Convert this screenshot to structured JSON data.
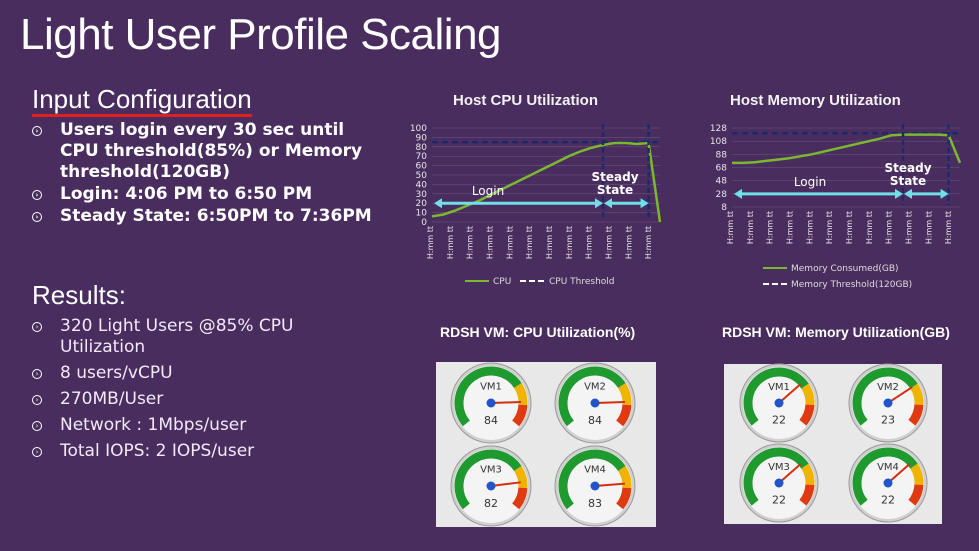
{
  "title": "Light User Profile Scaling",
  "input": {
    "heading": "Input Configuration",
    "items": [
      "Users login every 30 sec until CPU threshold(85%) or Memory threshold(120GB)",
      "Login: 4:06 PM to 6:50 PM",
      "Steady State: 6:50PM to 7:36PM"
    ]
  },
  "results": {
    "heading": "Results:",
    "items": [
      "320 Light Users @85% CPU Utilization",
      "8 users/vCPU",
      "270MB/User",
      "Network : 1Mbps/user",
      "Total IOPS: 2 IOPS/user"
    ]
  },
  "colors": {
    "background": "#4a2d5f",
    "series": "#7cb82f",
    "threshold": "#1c2a6b",
    "arrow": "#6fe0e8",
    "underline": "#e02020"
  },
  "chart_data": [
    {
      "type": "line",
      "title": "Host CPU Utilization",
      "yticks": [
        "100",
        "90",
        "80",
        "70",
        "60",
        "50",
        "40",
        "30",
        "20",
        "10",
        "0"
      ],
      "ylim": [
        0,
        100
      ],
      "xtick_label": "H:mm tt",
      "xtick_count": 12,
      "x": [
        0,
        1,
        2,
        3,
        4,
        5,
        6,
        7,
        8,
        9,
        10,
        11,
        12,
        13,
        14,
        15,
        16,
        17,
        18,
        19,
        20
      ],
      "series": [
        {
          "name": "CPU",
          "values": [
            6,
            8,
            12,
            17,
            22,
            28,
            34,
            40,
            46,
            52,
            58,
            64,
            70,
            75,
            79,
            82,
            84,
            84,
            83,
            84,
            0
          ]
        },
        {
          "name": "CPU Threshold",
          "values": [
            85,
            85,
            85,
            85,
            85,
            85,
            85,
            85,
            85,
            85,
            85,
            85,
            85,
            85,
            85,
            85,
            85,
            85,
            85,
            85,
            85
          ]
        }
      ],
      "annotations": {
        "login": "Login",
        "steady": "Steady State"
      }
    },
    {
      "type": "line",
      "title": "Host Memory Utilization",
      "yticks": [
        "128",
        "108",
        "88",
        "68",
        "48",
        "28",
        "8"
      ],
      "ylim": [
        8,
        128
      ],
      "xtick_label": "H:mm tt",
      "xtick_count": 12,
      "x": [
        0,
        1,
        2,
        3,
        4,
        5,
        6,
        7,
        8,
        9,
        10,
        11,
        12,
        13,
        14,
        15,
        16,
        17,
        18,
        19,
        20
      ],
      "series": [
        {
          "name": "Memory Consumed(GB)",
          "values": [
            75,
            75,
            76,
            78,
            80,
            82,
            85,
            88,
            92,
            96,
            100,
            104,
            108,
            112,
            117,
            118,
            118,
            118,
            118,
            117,
            75
          ]
        },
        {
          "name": "Memory Threshold(120GB)",
          "values": [
            120,
            120,
            120,
            120,
            120,
            120,
            120,
            120,
            120,
            120,
            120,
            120,
            120,
            120,
            120,
            120,
            120,
            120,
            120,
            120,
            120
          ]
        }
      ],
      "annotations": {
        "login": "Login",
        "steady": "Steady State"
      }
    }
  ],
  "gauges": {
    "cpu": {
      "title": "RDSH VM: CPU Utilization(%)",
      "vms": [
        {
          "name": "VM1",
          "value": "84"
        },
        {
          "name": "VM2",
          "value": "84"
        },
        {
          "name": "VM3",
          "value": "82"
        },
        {
          "name": "VM4",
          "value": "83"
        }
      ]
    },
    "memory": {
      "title": "RDSH VM: Memory Utilization(GB)",
      "vms": [
        {
          "name": "VM1",
          "value": "22"
        },
        {
          "name": "VM2",
          "value": "23"
        },
        {
          "name": "VM3",
          "value": "22"
        },
        {
          "name": "VM4",
          "value": "22"
        }
      ]
    }
  }
}
